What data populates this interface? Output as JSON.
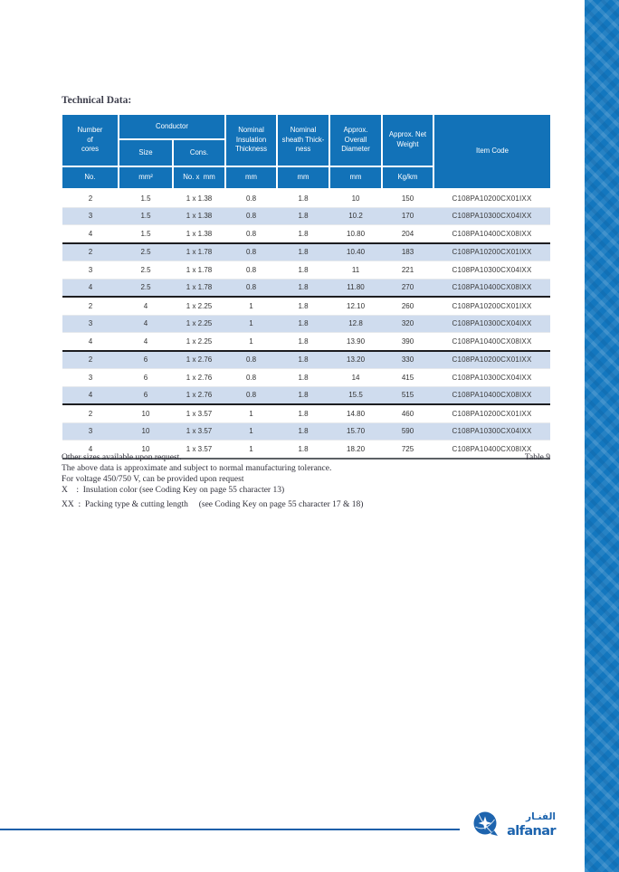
{
  "page": {
    "title": "Technical Data:",
    "table_label": "Table 9"
  },
  "table": {
    "header": {
      "cores": "Number\nof\ncores",
      "conductor": "Conductor",
      "size": "Size",
      "cons": "Cons.",
      "insulation": "Nominal\nInsulation\nThickness",
      "sheath": "Nominal\nsheath Thick-\nness",
      "diameter": "Approx.\nOverall\nDiameter",
      "weight": "Approx. Net\nWeight",
      "item_code": "Item Code"
    },
    "units": [
      "No.",
      "mm²",
      "No. x  mm",
      "mm",
      "mm",
      "mm",
      "Kg/km"
    ],
    "rows": [
      [
        "2",
        "1.5",
        "1 x 1.38",
        "0.8",
        "1.8",
        "10",
        "150",
        "C108PA10200CX01IXX"
      ],
      [
        "3",
        "1.5",
        "1 x 1.38",
        "0.8",
        "1.8",
        "10.2",
        "170",
        "C108PA10300CX04IXX"
      ],
      [
        "4",
        "1.5",
        "1 x 1.38",
        "0.8",
        "1.8",
        "10.80",
        "204",
        "C108PA10400CX08IXX"
      ],
      [
        "2",
        "2.5",
        "1 x 1.78",
        "0.8",
        "1.8",
        "10.40",
        "183",
        "C108PA10200CX01IXX"
      ],
      [
        "3",
        "2.5",
        "1 x 1.78",
        "0.8",
        "1.8",
        "11",
        "221",
        "C108PA10300CX04IXX"
      ],
      [
        "4",
        "2.5",
        "1 x 1.78",
        "0.8",
        "1.8",
        "11.80",
        "270",
        "C108PA10400CX08IXX"
      ],
      [
        "2",
        "4",
        "1 x 2.25",
        "1",
        "1.8",
        "12.10",
        "260",
        "C108PA10200CX01IXX"
      ],
      [
        "3",
        "4",
        "1 x 2.25",
        "1",
        "1.8",
        "12.8",
        "320",
        "C108PA10300CX04IXX"
      ],
      [
        "4",
        "4",
        "1 x 2.25",
        "1",
        "1.8",
        "13.90",
        "390",
        "C108PA10400CX08IXX"
      ],
      [
        "2",
        "6",
        "1 x 2.76",
        "0.8",
        "1.8",
        "13.20",
        "330",
        "C108PA10200CX01IXX"
      ],
      [
        "3",
        "6",
        "1 x 2.76",
        "0.8",
        "1.8",
        "14",
        "415",
        "C108PA10300CX04IXX"
      ],
      [
        "4",
        "6",
        "1 x 2.76",
        "0.8",
        "1.8",
        "15.5",
        "515",
        "C108PA10400CX08IXX"
      ],
      [
        "2",
        "10",
        "1 x 3.57",
        "1",
        "1.8",
        "14.80",
        "460",
        "C108PA10200CX01IXX"
      ],
      [
        "3",
        "10",
        "1 x 3.57",
        "1",
        "1.8",
        "15.70",
        "590",
        "C108PA10300CX04IXX"
      ],
      [
        "4",
        "10",
        "1 x 3.57",
        "1",
        "1.8",
        "18.20",
        "725",
        "C108PA10400CX08IXX"
      ]
    ],
    "group_starts": [
      3,
      6,
      9,
      12
    ]
  },
  "notes": {
    "line1": "Other sizes available upon request.",
    "line2": "The above data is approximate and subject to normal manufacturing tolerance.",
    "line3": "For voltage 450/750 V, can be provided upon request",
    "line4": "X    :  Insulation color (see Coding Key on page 55 character 13)",
    "line5": "XX  :  Packing type & cutting length     (see Coding Key on page 55 character 17 & 18)"
  },
  "logo": {
    "wordmark": "alfanar",
    "arabic": "الفنـار"
  },
  "colors": {
    "brand_blue": "#1272b8",
    "row_alt_blue": "#cfdcee",
    "band_blue": "#1377bf",
    "rule_blue": "#1e5fa9"
  }
}
